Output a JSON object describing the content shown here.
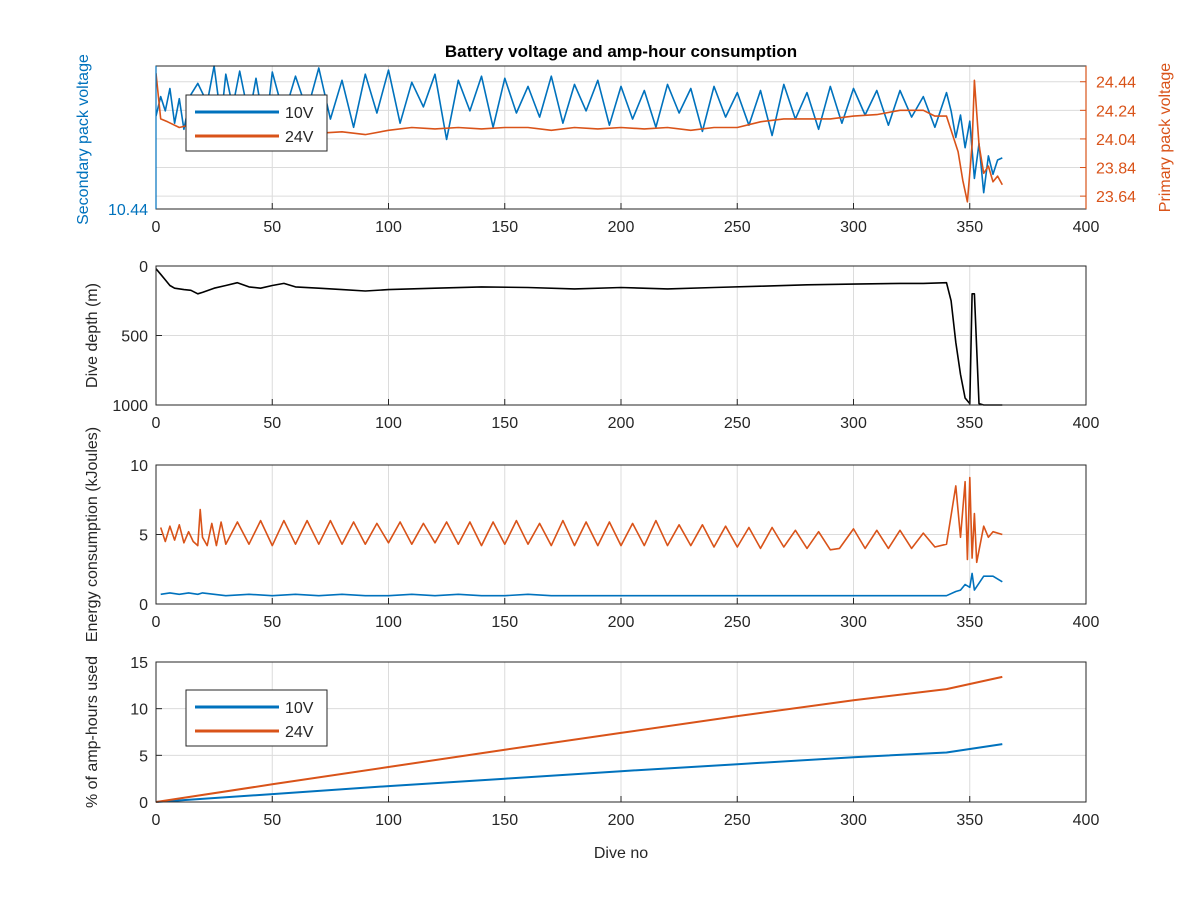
{
  "figure": {
    "title": "Battery voltage and amp-hour consumption",
    "xlabel": "Dive no"
  },
  "colors": {
    "series_10v": "#0072BD",
    "series_24v": "#D95319",
    "depth": "#000000",
    "axis": "#262626",
    "grid": "#dcdcdc"
  },
  "chart_data": [
    {
      "type": "line",
      "title": "Battery voltage and amp-hour consumption",
      "xlabel": "",
      "xlim": [
        0,
        400
      ],
      "xticks": [
        "0",
        "50",
        "100",
        "150",
        "200",
        "250",
        "300",
        "350",
        "400"
      ],
      "left_axis": {
        "label": "Secondary pack voltage",
        "ticks": [
          "10.44"
        ],
        "ylim": [
          10.44,
          10.58
        ]
      },
      "right_axis": {
        "label": "Primary pack voltage",
        "ticks": [
          "24.44",
          "24.24",
          "24.04",
          "23.84",
          "23.64"
        ],
        "ylim": [
          23.55,
          24.55
        ]
      },
      "legend": {
        "placement": "top-left",
        "entries": [
          "10V",
          "24V"
        ]
      },
      "grid": true,
      "series": [
        {
          "name": "10V",
          "axis": "left",
          "x": [
            0,
            2,
            4,
            6,
            8,
            10,
            12,
            15,
            18,
            22,
            25,
            28,
            30,
            33,
            36,
            40,
            43,
            47,
            50,
            55,
            60,
            65,
            70,
            75,
            80,
            85,
            90,
            95,
            100,
            105,
            110,
            115,
            120,
            125,
            130,
            135,
            140,
            145,
            150,
            155,
            160,
            165,
            170,
            175,
            180,
            185,
            190,
            195,
            200,
            205,
            210,
            215,
            220,
            225,
            230,
            235,
            240,
            245,
            250,
            255,
            260,
            265,
            270,
            275,
            280,
            285,
            290,
            295,
            300,
            305,
            310,
            315,
            320,
            325,
            330,
            335,
            340,
            342,
            344,
            346,
            348,
            350,
            352,
            354,
            356,
            358,
            360,
            362,
            364
          ],
          "y": [
            10.531,
            10.55,
            10.536,
            10.558,
            10.524,
            10.548,
            10.518,
            10.552,
            10.563,
            10.544,
            10.58,
            10.528,
            10.572,
            10.54,
            10.575,
            10.53,
            10.568,
            10.514,
            10.574,
            10.532,
            10.57,
            10.536,
            10.578,
            10.528,
            10.566,
            10.52,
            10.572,
            10.534,
            10.576,
            10.524,
            10.564,
            10.54,
            10.572,
            10.508,
            10.566,
            10.536,
            10.57,
            10.52,
            10.568,
            10.534,
            10.56,
            10.53,
            10.57,
            10.524,
            10.562,
            10.536,
            10.566,
            10.522,
            10.56,
            10.528,
            10.556,
            10.52,
            10.562,
            10.534,
            10.558,
            10.516,
            10.56,
            10.53,
            10.554,
            10.522,
            10.556,
            10.512,
            10.562,
            10.528,
            10.554,
            10.518,
            10.56,
            10.524,
            10.558,
            10.532,
            10.556,
            10.522,
            10.556,
            10.53,
            10.55,
            10.52,
            10.554,
            10.536,
            10.51,
            10.532,
            10.5,
            10.526,
            10.47,
            10.504,
            10.456,
            10.492,
            10.474,
            10.488,
            10.49
          ]
        },
        {
          "name": "24V",
          "axis": "right",
          "x": [
            0,
            2,
            5,
            10,
            15,
            20,
            25,
            30,
            40,
            50,
            60,
            70,
            80,
            90,
            100,
            110,
            120,
            130,
            140,
            150,
            160,
            170,
            180,
            190,
            200,
            210,
            220,
            230,
            240,
            250,
            260,
            270,
            280,
            290,
            300,
            310,
            320,
            330,
            335,
            340,
            342,
            345,
            347,
            349,
            351,
            352,
            354,
            356,
            358,
            360,
            362,
            364
          ],
          "y": [
            24.5,
            24.18,
            24.16,
            24.12,
            24.14,
            24.16,
            24.12,
            24.13,
            24.14,
            24.08,
            24.1,
            24.08,
            24.09,
            24.07,
            24.1,
            24.12,
            24.11,
            24.12,
            24.11,
            24.12,
            24.12,
            24.1,
            24.12,
            24.11,
            24.12,
            24.11,
            24.12,
            24.1,
            24.12,
            24.12,
            24.16,
            24.18,
            24.18,
            24.18,
            24.2,
            24.21,
            24.24,
            24.24,
            24.2,
            24.2,
            24.1,
            23.95,
            23.75,
            23.6,
            24.0,
            24.45,
            24.0,
            23.8,
            23.85,
            23.74,
            23.78,
            23.72
          ]
        }
      ]
    },
    {
      "type": "line",
      "title": "",
      "xlabel": "",
      "xlim": [
        0,
        400
      ],
      "ylim": [
        0,
        1000
      ],
      "y_reversed": true,
      "xticks": [
        "0",
        "50",
        "100",
        "150",
        "200",
        "250",
        "300",
        "350",
        "400"
      ],
      "yticks": [
        "0",
        "500",
        "1000"
      ],
      "ylabel": "Dive depth (m)",
      "grid": true,
      "series": [
        {
          "name": "",
          "x": [
            0,
            2,
            4,
            6,
            8,
            12,
            15,
            18,
            20,
            25,
            30,
            35,
            40,
            45,
            50,
            55,
            60,
            70,
            80,
            90,
            100,
            120,
            140,
            160,
            180,
            200,
            220,
            240,
            260,
            280,
            300,
            320,
            330,
            340,
            342,
            344,
            346,
            348,
            350,
            351,
            352,
            354,
            356,
            358,
            364
          ],
          "y": [
            20,
            60,
            100,
            140,
            160,
            170,
            175,
            200,
            190,
            160,
            140,
            120,
            150,
            160,
            140,
            125,
            150,
            160,
            170,
            180,
            170,
            160,
            150,
            155,
            165,
            155,
            165,
            155,
            145,
            135,
            130,
            125,
            125,
            120,
            250,
            550,
            780,
            950,
            990,
            200,
            200,
            990,
            1000,
            1000,
            1000
          ]
        }
      ]
    },
    {
      "type": "line",
      "title": "",
      "xlabel": "",
      "xlim": [
        0,
        400
      ],
      "ylim": [
        0,
        10
      ],
      "xticks": [
        "0",
        "50",
        "100",
        "150",
        "200",
        "250",
        "300",
        "350",
        "400"
      ],
      "yticks": [
        "0",
        "5",
        "10"
      ],
      "ylabel": "Energy consumption (kJoules)",
      "grid": true,
      "series": [
        {
          "name": "10V",
          "x": [
            2,
            6,
            10,
            14,
            18,
            20,
            30,
            40,
            50,
            60,
            70,
            80,
            90,
            100,
            110,
            120,
            130,
            140,
            150,
            160,
            170,
            180,
            190,
            200,
            210,
            220,
            230,
            240,
            250,
            260,
            270,
            280,
            290,
            294,
            300,
            310,
            320,
            330,
            340,
            344,
            346,
            348,
            350,
            351,
            352,
            356,
            360,
            364
          ],
          "y": [
            0.7,
            0.8,
            0.7,
            0.8,
            0.7,
            0.8,
            0.6,
            0.7,
            0.6,
            0.7,
            0.6,
            0.7,
            0.6,
            0.6,
            0.7,
            0.6,
            0.7,
            0.6,
            0.6,
            0.7,
            0.6,
            0.6,
            0.6,
            0.6,
            0.6,
            0.6,
            0.6,
            0.6,
            0.6,
            0.6,
            0.6,
            0.6,
            0.6,
            0.6,
            0.6,
            0.6,
            0.6,
            0.6,
            0.6,
            0.9,
            1.0,
            1.4,
            1.2,
            2.2,
            1.0,
            2.0,
            2.0,
            1.6
          ]
        },
        {
          "name": "24V",
          "x": [
            2,
            4,
            6,
            8,
            10,
            12,
            14,
            16,
            18,
            19,
            20,
            22,
            24,
            26,
            28,
            30,
            35,
            40,
            45,
            50,
            55,
            60,
            65,
            70,
            75,
            80,
            85,
            90,
            95,
            100,
            105,
            110,
            115,
            120,
            125,
            130,
            135,
            140,
            145,
            150,
            155,
            160,
            165,
            170,
            175,
            180,
            185,
            190,
            195,
            200,
            205,
            210,
            215,
            220,
            225,
            230,
            235,
            240,
            245,
            250,
            255,
            260,
            265,
            270,
            275,
            280,
            285,
            290,
            294,
            300,
            305,
            310,
            315,
            320,
            325,
            330,
            335,
            340,
            344,
            346,
            348,
            349,
            350,
            351,
            352,
            353,
            356,
            358,
            360,
            364
          ],
          "y": [
            5.5,
            4.5,
            5.6,
            4.6,
            5.7,
            4.4,
            5.2,
            4.5,
            4.2,
            6.8,
            4.8,
            4.2,
            5.8,
            4.2,
            5.9,
            4.3,
            5.9,
            4.3,
            6.0,
            4.2,
            6.0,
            4.3,
            6.0,
            4.3,
            6.0,
            4.3,
            5.9,
            4.3,
            5.8,
            4.4,
            5.9,
            4.3,
            5.8,
            4.4,
            5.9,
            4.3,
            5.9,
            4.2,
            5.9,
            4.3,
            6.0,
            4.3,
            5.8,
            4.2,
            6.0,
            4.2,
            5.9,
            4.2,
            5.9,
            4.2,
            5.8,
            4.2,
            6.0,
            4.2,
            5.7,
            4.2,
            5.7,
            4.1,
            5.6,
            4.1,
            5.5,
            4.0,
            5.5,
            4.1,
            5.3,
            4.0,
            5.2,
            3.9,
            4.0,
            5.4,
            4.0,
            5.3,
            4.0,
            5.3,
            4.0,
            5.1,
            4.1,
            4.3,
            8.5,
            4.8,
            8.8,
            3.2,
            9.1,
            3.3,
            6.5,
            3.0,
            5.6,
            4.8,
            5.2,
            5.0
          ]
        }
      ]
    },
    {
      "type": "line",
      "title": "",
      "xlabel": "Dive no",
      "xlim": [
        0,
        400
      ],
      "ylim": [
        0,
        15
      ],
      "xticks": [
        "0",
        "50",
        "100",
        "150",
        "200",
        "250",
        "300",
        "350",
        "400"
      ],
      "yticks": [
        "0",
        "5",
        "10",
        "15"
      ],
      "ylabel": "% of amp-hours used",
      "legend": {
        "placement": "top-left",
        "entries": [
          "10V",
          "24V"
        ]
      },
      "grid": true,
      "series": [
        {
          "name": "10V",
          "x": [
            0,
            50,
            100,
            150,
            200,
            250,
            300,
            340,
            364
          ],
          "y": [
            0,
            0.85,
            1.7,
            2.5,
            3.3,
            4.05,
            4.8,
            5.3,
            6.2
          ]
        },
        {
          "name": "24V",
          "x": [
            0,
            50,
            100,
            150,
            200,
            250,
            300,
            340,
            364
          ],
          "y": [
            0,
            1.9,
            3.75,
            5.6,
            7.4,
            9.2,
            10.9,
            12.1,
            13.4
          ]
        }
      ]
    }
  ]
}
